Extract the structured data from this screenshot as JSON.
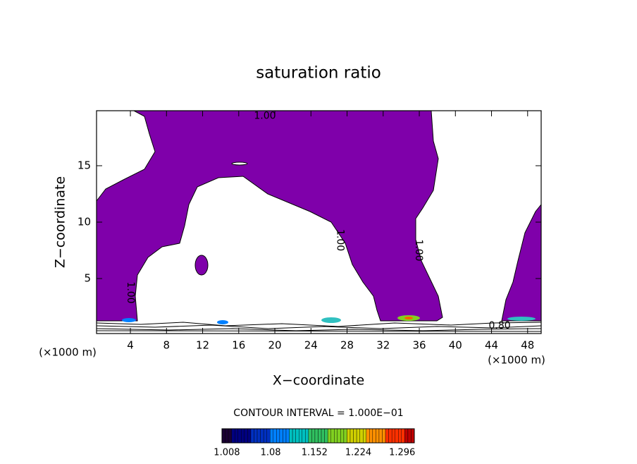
{
  "chart_data": {
    "type": "contour",
    "title": "saturation ratio",
    "x_label": "X−coordinate",
    "y_label": "Z−coordinate",
    "x_unit": "(×1000 m)",
    "y_unit": "(×1000 m)",
    "xlim": [
      0.25,
      49.5
    ],
    "xticks": [
      4,
      8,
      12,
      16,
      20,
      24,
      28,
      32,
      36,
      40,
      44,
      48
    ],
    "ylim": [
      0.125,
      19.875
    ],
    "yticks": [
      5,
      10,
      15
    ],
    "fill_color": "#7f00aa",
    "contour_labels": [
      {
        "text": "1.00",
        "x": 18.9,
        "y": 19.4,
        "rotated": false
      },
      {
        "text": "1.00",
        "x": 27.2,
        "y": 8.4,
        "rotated": true
      },
      {
        "text": "1.00",
        "x": 35.9,
        "y": 7.5,
        "rotated": true
      },
      {
        "text": "1.00",
        "x": 4.0,
        "y": 3.75,
        "rotated": true
      },
      {
        "text": "0.80",
        "x": 44.9,
        "y": 0.8,
        "rotated": false
      }
    ],
    "interval_label": "CONTOUR INTERVAL = 1.000E−01",
    "colorbar": {
      "lim": [
        1.0,
        1.316
      ],
      "ticks": [
        1.008,
        1.08,
        1.152,
        1.224,
        1.296
      ],
      "colors": [
        "#1a0033",
        "#000080",
        "#0030c0",
        "#0080ff",
        "#00c0c0",
        "#30c060",
        "#80d020",
        "#d0d000",
        "#ff9000",
        "#ff3000",
        "#c00000"
      ]
    }
  }
}
